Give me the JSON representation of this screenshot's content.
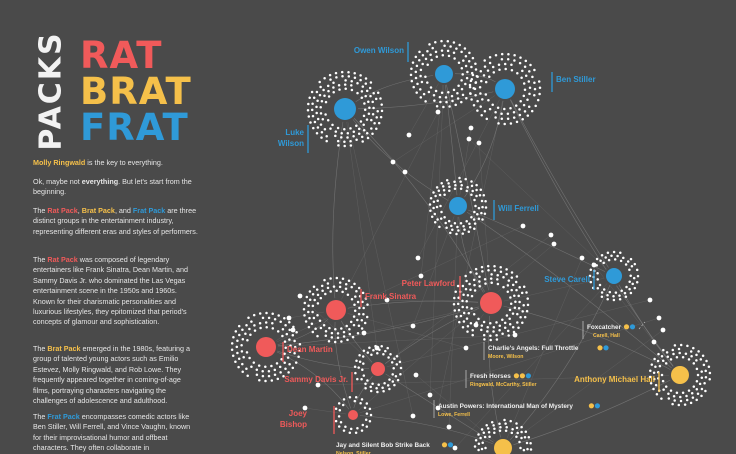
{
  "title": {
    "vertical": "PACKS",
    "rat": "RAT",
    "brat": "BRAT",
    "frat": "FRAT"
  },
  "intro": {
    "p1_name": "Molly Ringwald",
    "p1_rest": " is the key to everything.",
    "p2_a": "Ok, maybe not ",
    "p2_b": "everything",
    "p2_c": ". But let's start from the beginning.",
    "p3_a": "The ",
    "p3_rat": "Rat Pack",
    "p3_b": ", ",
    "p3_brat": "Brat Pack",
    "p3_c": ", and ",
    "p3_frat": "Frat Pack",
    "p3_d": " are three distinct groups in the entertainment industry, representing different eras and styles of performers.",
    "p4_a": "The ",
    "p4_rat": "Rat Pack",
    "p4_b": " was composed of legendary entertainers like Frank Sinatra, Dean Martin, and Sammy Davis Jr. who dominated the Las Vegas entertainment scene in the 1950s and 1960s. Known for their charismatic personalities and luxurious lifestyles, they epitomized that period's concepts of glamour and sophistication.",
    "p5_a": "The ",
    "p5_brat": "Brat Pack",
    "p5_b": " emerged in the 1980s, featuring a group of talented young actors such as Emilio Estevez, Molly Ringwald, and Rob Lowe. They frequently appeared together in coming-of-age films, portraying characters navigating the challenges of adolescence and adulthood.",
    "p6_a": "The ",
    "p6_frat": "Frat Pack",
    "p6_b": " encompasses comedic actors like Ben Stiller, Will Ferrell, and Vince Vaughn, known for their improvisational humor and offbeat characters. They often collaborate in"
  },
  "colors": {
    "background": "#4a4a4a",
    "rat": "#f05a5a",
    "brat": "#f5c04a",
    "frat": "#2f9ad8",
    "text": "#e6e6e6",
    "edge": "#7c7c7c",
    "movie_dot": "#ffffff"
  },
  "actors": [
    {
      "id": "owen",
      "label": [
        "Owen Wilson"
      ],
      "pack": "frat"
    },
    {
      "id": "ben",
      "label": [
        "Ben Stiller"
      ],
      "pack": "frat"
    },
    {
      "id": "luke",
      "label": [
        "Luke",
        "Wilson"
      ],
      "pack": "frat"
    },
    {
      "id": "will",
      "label": [
        "Will Ferrell"
      ],
      "pack": "frat"
    },
    {
      "id": "steve",
      "label": [
        "Steve Carell"
      ],
      "pack": "frat"
    },
    {
      "id": "peter",
      "label": [
        "Peter Lawford"
      ],
      "pack": "rat"
    },
    {
      "id": "frank",
      "label": [
        "Frank Sinatra"
      ],
      "pack": "rat"
    },
    {
      "id": "dean",
      "label": [
        "Dean Martin"
      ],
      "pack": "rat"
    },
    {
      "id": "sammy",
      "label": [
        "Sammy Davis Jr."
      ],
      "pack": "rat"
    },
    {
      "id": "joey",
      "label": [
        "Joey",
        "Bishop"
      ],
      "pack": "rat"
    },
    {
      "id": "anthony",
      "label": [
        "Anthony Michael Hall"
      ],
      "pack": "brat"
    },
    {
      "id": "bottom",
      "label": [],
      "pack": "brat"
    }
  ],
  "movies": [
    {
      "title": "Foxcatcher",
      "cast": "Carell, Hall",
      "dots": [
        "brat",
        "frat"
      ]
    },
    {
      "title": "Charlie's Angels: Full Throttle",
      "cast": "Moore, Wilson",
      "dots": [
        "brat",
        "frat"
      ]
    },
    {
      "title": "Fresh Horses",
      "cast": "Ringwald, McCarthy, Stiller",
      "dots": [
        "brat",
        "brat",
        "frat"
      ]
    },
    {
      "title": "Austin Powers: International Man of Mystery",
      "cast": "Lowe, Ferrell",
      "dots": [
        "brat",
        "frat"
      ]
    },
    {
      "title": "Jay and Silent Bob Strike Back",
      "cast": "Nelson, Stiller",
      "dots": [
        "brat",
        "frat"
      ]
    }
  ]
}
